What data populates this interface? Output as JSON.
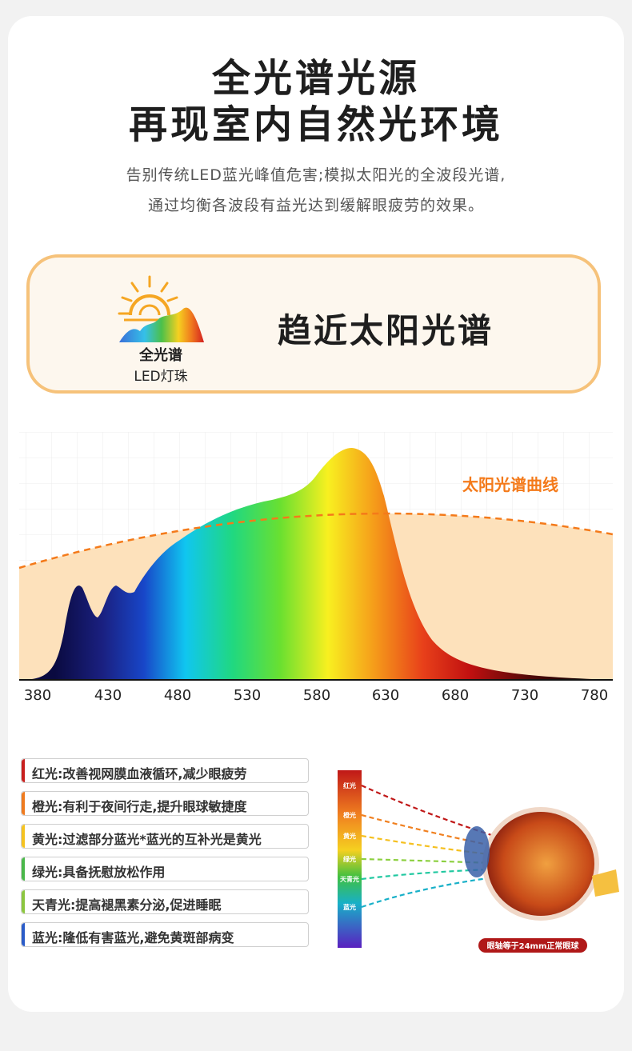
{
  "header": {
    "title_line1": "全光谱光源",
    "title_line2": "再现室内自然光环境",
    "subtitle_line1": "告别传统LED蓝光峰值危害;模拟太阳光的全波段光谱,",
    "subtitle_line2": "通过均衡各波段有益光达到缓解眼疲劳的效果。"
  },
  "feature": {
    "icon": "sun-spectrum-icon",
    "led_title": "全光谱",
    "led_subtitle": "LED灯珠",
    "headline": "趋近太阳光谱"
  },
  "spectrum_chart": {
    "curve_label": "太阳光谱曲线",
    "x_ticks": [
      "380",
      "430",
      "480",
      "530",
      "580",
      "630",
      "680",
      "730",
      "780"
    ]
  },
  "benefits": [
    {
      "text": "红光:改善视网膜血液循环,减少眼疲劳",
      "color": "#c8201e"
    },
    {
      "text": "橙光:有利于夜间行走,提升眼球敏捷度",
      "color": "#ef7b1f"
    },
    {
      "text": "黄光:过滤部分蓝光*蓝光的互补光是黄光",
      "color": "#f5c320"
    },
    {
      "text": "绿光:具备抚慰放松作用",
      "color": "#4ab84a"
    },
    {
      "text": "天青光:提高褪黑素分泌,促进睡眠",
      "color": "#8cc63f"
    },
    {
      "text": "蓝光:隆低有害蓝光,避免黄斑部病变",
      "color": "#2b5cc8"
    }
  ],
  "eye_diagram": {
    "bands": [
      "红光",
      "橙光",
      "黄光",
      "绿光",
      "天青光",
      "蓝光"
    ],
    "caption": "眼轴等于24mm正常眼球"
  },
  "colors": {
    "accent_orange": "#f47a1a",
    "border": "#f6c27a"
  }
}
